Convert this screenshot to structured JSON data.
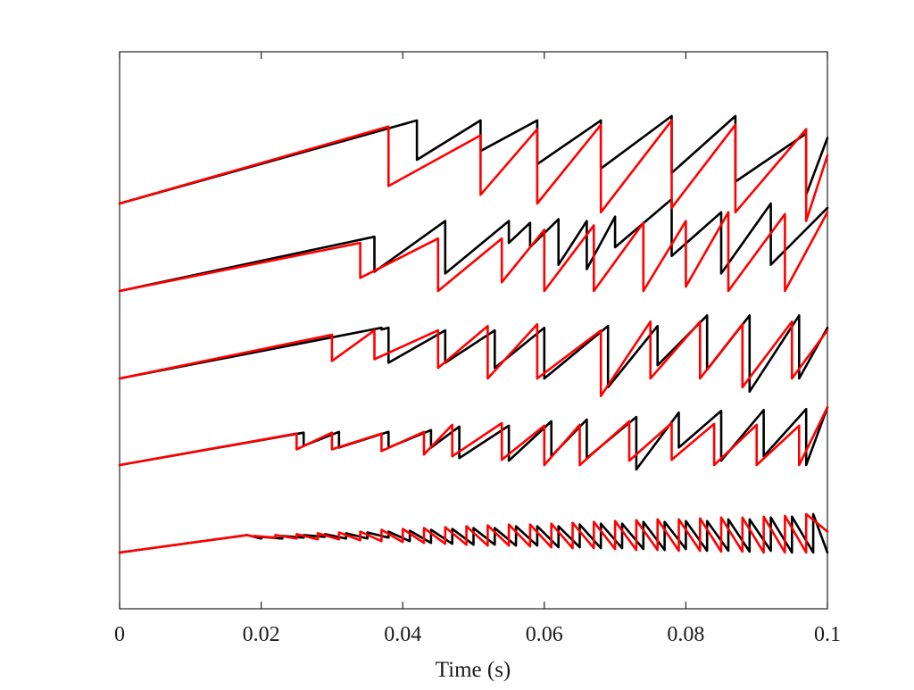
{
  "chart_data": {
    "type": "line",
    "title": "",
    "xlabel": "Time (s)",
    "ylabel": "",
    "xlim": [
      0,
      0.1
    ],
    "x_ticks": [
      0,
      0.02,
      0.04,
      0.06,
      0.08,
      0.1
    ],
    "x_tick_labels": [
      "0",
      "0.02",
      "0.04",
      "0.06",
      "0.08",
      "0.1"
    ],
    "y_ticks_shown": false,
    "grid": false,
    "legend": "none",
    "series_colors": [
      "#000000",
      "#ff0000"
    ],
    "traces": [
      {
        "baseline": 0.0,
        "black_x": [
          0,
          0.018,
          0.02,
          0.02,
          0.023,
          0.023,
          0.026,
          0.026,
          0.029,
          0.029,
          0.032,
          0.032,
          0.035,
          0.035,
          0.038,
          0.038,
          0.041,
          0.041,
          0.044,
          0.044,
          0.047,
          0.047,
          0.05,
          0.05,
          0.053,
          0.053,
          0.056,
          0.056,
          0.059,
          0.059,
          0.062,
          0.062,
          0.065,
          0.065,
          0.068,
          0.068,
          0.071,
          0.071,
          0.074,
          0.074,
          0.077,
          0.077,
          0.08,
          0.08,
          0.083,
          0.083,
          0.086,
          0.086,
          0.089,
          0.089,
          0.092,
          0.092,
          0.095,
          0.095,
          0.098,
          0.098,
          0.1
        ],
        "black_y": [
          0,
          0.2,
          0.16,
          0.18,
          0.16,
          0.19,
          0.17,
          0.2,
          0.18,
          0.21,
          0.16,
          0.22,
          0.16,
          0.23,
          0.17,
          0.24,
          0.13,
          0.25,
          0.11,
          0.26,
          0.1,
          0.27,
          0.09,
          0.28,
          0.09,
          0.28,
          0.08,
          0.3,
          0.08,
          0.3,
          0.06,
          0.3,
          0.06,
          0.32,
          0.05,
          0.33,
          0.05,
          0.33,
          0.04,
          0.35,
          0.03,
          0.35,
          0.04,
          0.36,
          0.02,
          0.36,
          0.02,
          0.38,
          0.01,
          0.38,
          0.02,
          0.4,
          0.0,
          0.41,
          0.0,
          0.44,
          0.0
        ],
        "red_x": [
          0,
          0.018,
          0.019,
          0.019,
          0.022,
          0.022,
          0.025,
          0.025,
          0.028,
          0.028,
          0.031,
          0.031,
          0.034,
          0.034,
          0.037,
          0.037,
          0.04,
          0.04,
          0.043,
          0.043,
          0.046,
          0.046,
          0.049,
          0.049,
          0.052,
          0.052,
          0.055,
          0.055,
          0.058,
          0.058,
          0.061,
          0.061,
          0.064,
          0.064,
          0.067,
          0.067,
          0.07,
          0.07,
          0.073,
          0.073,
          0.076,
          0.076,
          0.079,
          0.079,
          0.082,
          0.082,
          0.085,
          0.085,
          0.088,
          0.088,
          0.091,
          0.091,
          0.094,
          0.094,
          0.097,
          0.097,
          0.1
        ],
        "red_y": [
          0,
          0.2,
          0.18,
          0.19,
          0.17,
          0.2,
          0.16,
          0.21,
          0.15,
          0.22,
          0.15,
          0.23,
          0.14,
          0.24,
          0.13,
          0.26,
          0.12,
          0.27,
          0.11,
          0.28,
          0.1,
          0.29,
          0.09,
          0.3,
          0.08,
          0.31,
          0.08,
          0.32,
          0.07,
          0.32,
          0.06,
          0.33,
          0.05,
          0.34,
          0.05,
          0.35,
          0.04,
          0.36,
          0.03,
          0.37,
          0.03,
          0.38,
          0.02,
          0.38,
          0.02,
          0.39,
          0.01,
          0.4,
          0.01,
          0.4,
          0.0,
          0.41,
          0.0,
          0.42,
          0.0,
          0.44,
          0.24
        ]
      },
      {
        "baseline": 1.0,
        "black_x": [
          0,
          0.026,
          0.026,
          0.031,
          0.031,
          0.038,
          0.038,
          0.044,
          0.044,
          0.048,
          0.048,
          0.055,
          0.055,
          0.061,
          0.061,
          0.066,
          0.066,
          0.073,
          0.073,
          0.079,
          0.079,
          0.085,
          0.085,
          0.091,
          0.091,
          0.097,
          0.097,
          0.1
        ],
        "black_y": [
          0,
          0.37,
          0.22,
          0.38,
          0.2,
          0.38,
          0.2,
          0.4,
          0.2,
          0.44,
          0.08,
          0.45,
          0.05,
          0.5,
          0.1,
          0.52,
          0.08,
          0.55,
          -0.05,
          0.6,
          0.2,
          0.62,
          0.05,
          0.63,
          0.1,
          0.64,
          0.0,
          0.66
        ],
        "red_x": [
          0,
          0.025,
          0.025,
          0.03,
          0.03,
          0.037,
          0.037,
          0.043,
          0.043,
          0.047,
          0.047,
          0.054,
          0.054,
          0.06,
          0.06,
          0.065,
          0.065,
          0.072,
          0.072,
          0.078,
          0.078,
          0.084,
          0.084,
          0.09,
          0.09,
          0.096,
          0.096,
          0.1
        ],
        "red_y": [
          0,
          0.36,
          0.18,
          0.37,
          0.18,
          0.36,
          0.16,
          0.38,
          0.12,
          0.46,
          0.1,
          0.48,
          0.06,
          0.45,
          0.0,
          0.46,
          0.0,
          0.5,
          0.05,
          0.48,
          0.06,
          0.47,
          0.0,
          0.46,
          0.0,
          0.45,
          0.0,
          0.66
        ]
      },
      {
        "baseline": 2.0,
        "black_x": [
          0,
          0.037,
          0.037,
          0.038,
          0.038,
          0.046,
          0.046,
          0.053,
          0.053,
          0.06,
          0.06,
          0.069,
          0.069,
          0.076,
          0.076,
          0.083,
          0.083,
          0.089,
          0.089,
          0.096,
          0.096,
          0.1
        ],
        "black_y": [
          0,
          0.58,
          0.56,
          0.58,
          0.18,
          0.55,
          0.18,
          0.55,
          0.12,
          0.58,
          0.0,
          0.6,
          -0.1,
          0.6,
          0.15,
          0.72,
          0.1,
          0.72,
          -0.15,
          0.72,
          0.0,
          0.58
        ],
        "red_x": [
          0,
          0.03,
          0.03,
          0.036,
          0.036,
          0.045,
          0.045,
          0.052,
          0.052,
          0.059,
          0.059,
          0.068,
          0.068,
          0.075,
          0.075,
          0.082,
          0.082,
          0.088,
          0.088,
          0.095,
          0.095,
          0.1
        ],
        "red_y": [
          0,
          0.5,
          0.2,
          0.55,
          0.22,
          0.55,
          0.12,
          0.6,
          0.0,
          0.62,
          0.0,
          0.55,
          -0.2,
          0.65,
          0.0,
          0.65,
          0.0,
          0.62,
          -0.1,
          0.65,
          0.0,
          0.55
        ]
      },
      {
        "baseline": 3.0,
        "black_x": [
          0,
          0.036,
          0.036,
          0.046,
          0.046,
          0.055,
          0.055,
          0.058,
          0.058,
          0.062,
          0.062,
          0.066,
          0.066,
          0.07,
          0.07,
          0.078,
          0.078,
          0.085,
          0.085,
          0.092,
          0.092,
          0.1
        ],
        "black_y": [
          0,
          0.62,
          0.22,
          0.8,
          0.2,
          0.8,
          0.55,
          0.78,
          0.5,
          0.82,
          0.3,
          0.8,
          0.25,
          0.85,
          0.5,
          1.05,
          0.4,
          0.9,
          0.2,
          1.0,
          0.3,
          0.95
        ],
        "red_x": [
          0,
          0.034,
          0.034,
          0.045,
          0.045,
          0.054,
          0.054,
          0.06,
          0.06,
          0.067,
          0.067,
          0.074,
          0.074,
          0.08,
          0.08,
          0.086,
          0.086,
          0.094,
          0.094,
          0.1
        ],
        "red_y": [
          0,
          0.55,
          0.15,
          0.6,
          0.0,
          0.6,
          0.1,
          0.7,
          0.0,
          0.75,
          0.0,
          0.78,
          0.0,
          0.8,
          0.05,
          0.9,
          0.0,
          0.88,
          0.0,
          0.9
        ]
      },
      {
        "baseline": 4.0,
        "black_x": [
          0,
          0.042,
          0.042,
          0.051,
          0.051,
          0.059,
          0.059,
          0.068,
          0.068,
          0.078,
          0.078,
          0.087,
          0.087,
          0.097,
          0.097,
          0.1
        ],
        "black_y": [
          0,
          0.95,
          0.5,
          0.95,
          0.6,
          0.95,
          0.45,
          0.95,
          0.4,
          1.0,
          0.35,
          1.0,
          0.25,
          0.8,
          0.1,
          0.75
        ],
        "red_x": [
          0,
          0.038,
          0.038,
          0.051,
          0.051,
          0.059,
          0.059,
          0.068,
          0.068,
          0.078,
          0.078,
          0.087,
          0.087,
          0.097,
          0.097,
          0.1
        ],
        "red_y": [
          0,
          0.88,
          0.2,
          0.78,
          0.1,
          0.85,
          0.0,
          0.9,
          -0.1,
          0.95,
          -0.05,
          0.9,
          -0.1,
          0.85,
          -0.2,
          0.55
        ]
      }
    ]
  }
}
